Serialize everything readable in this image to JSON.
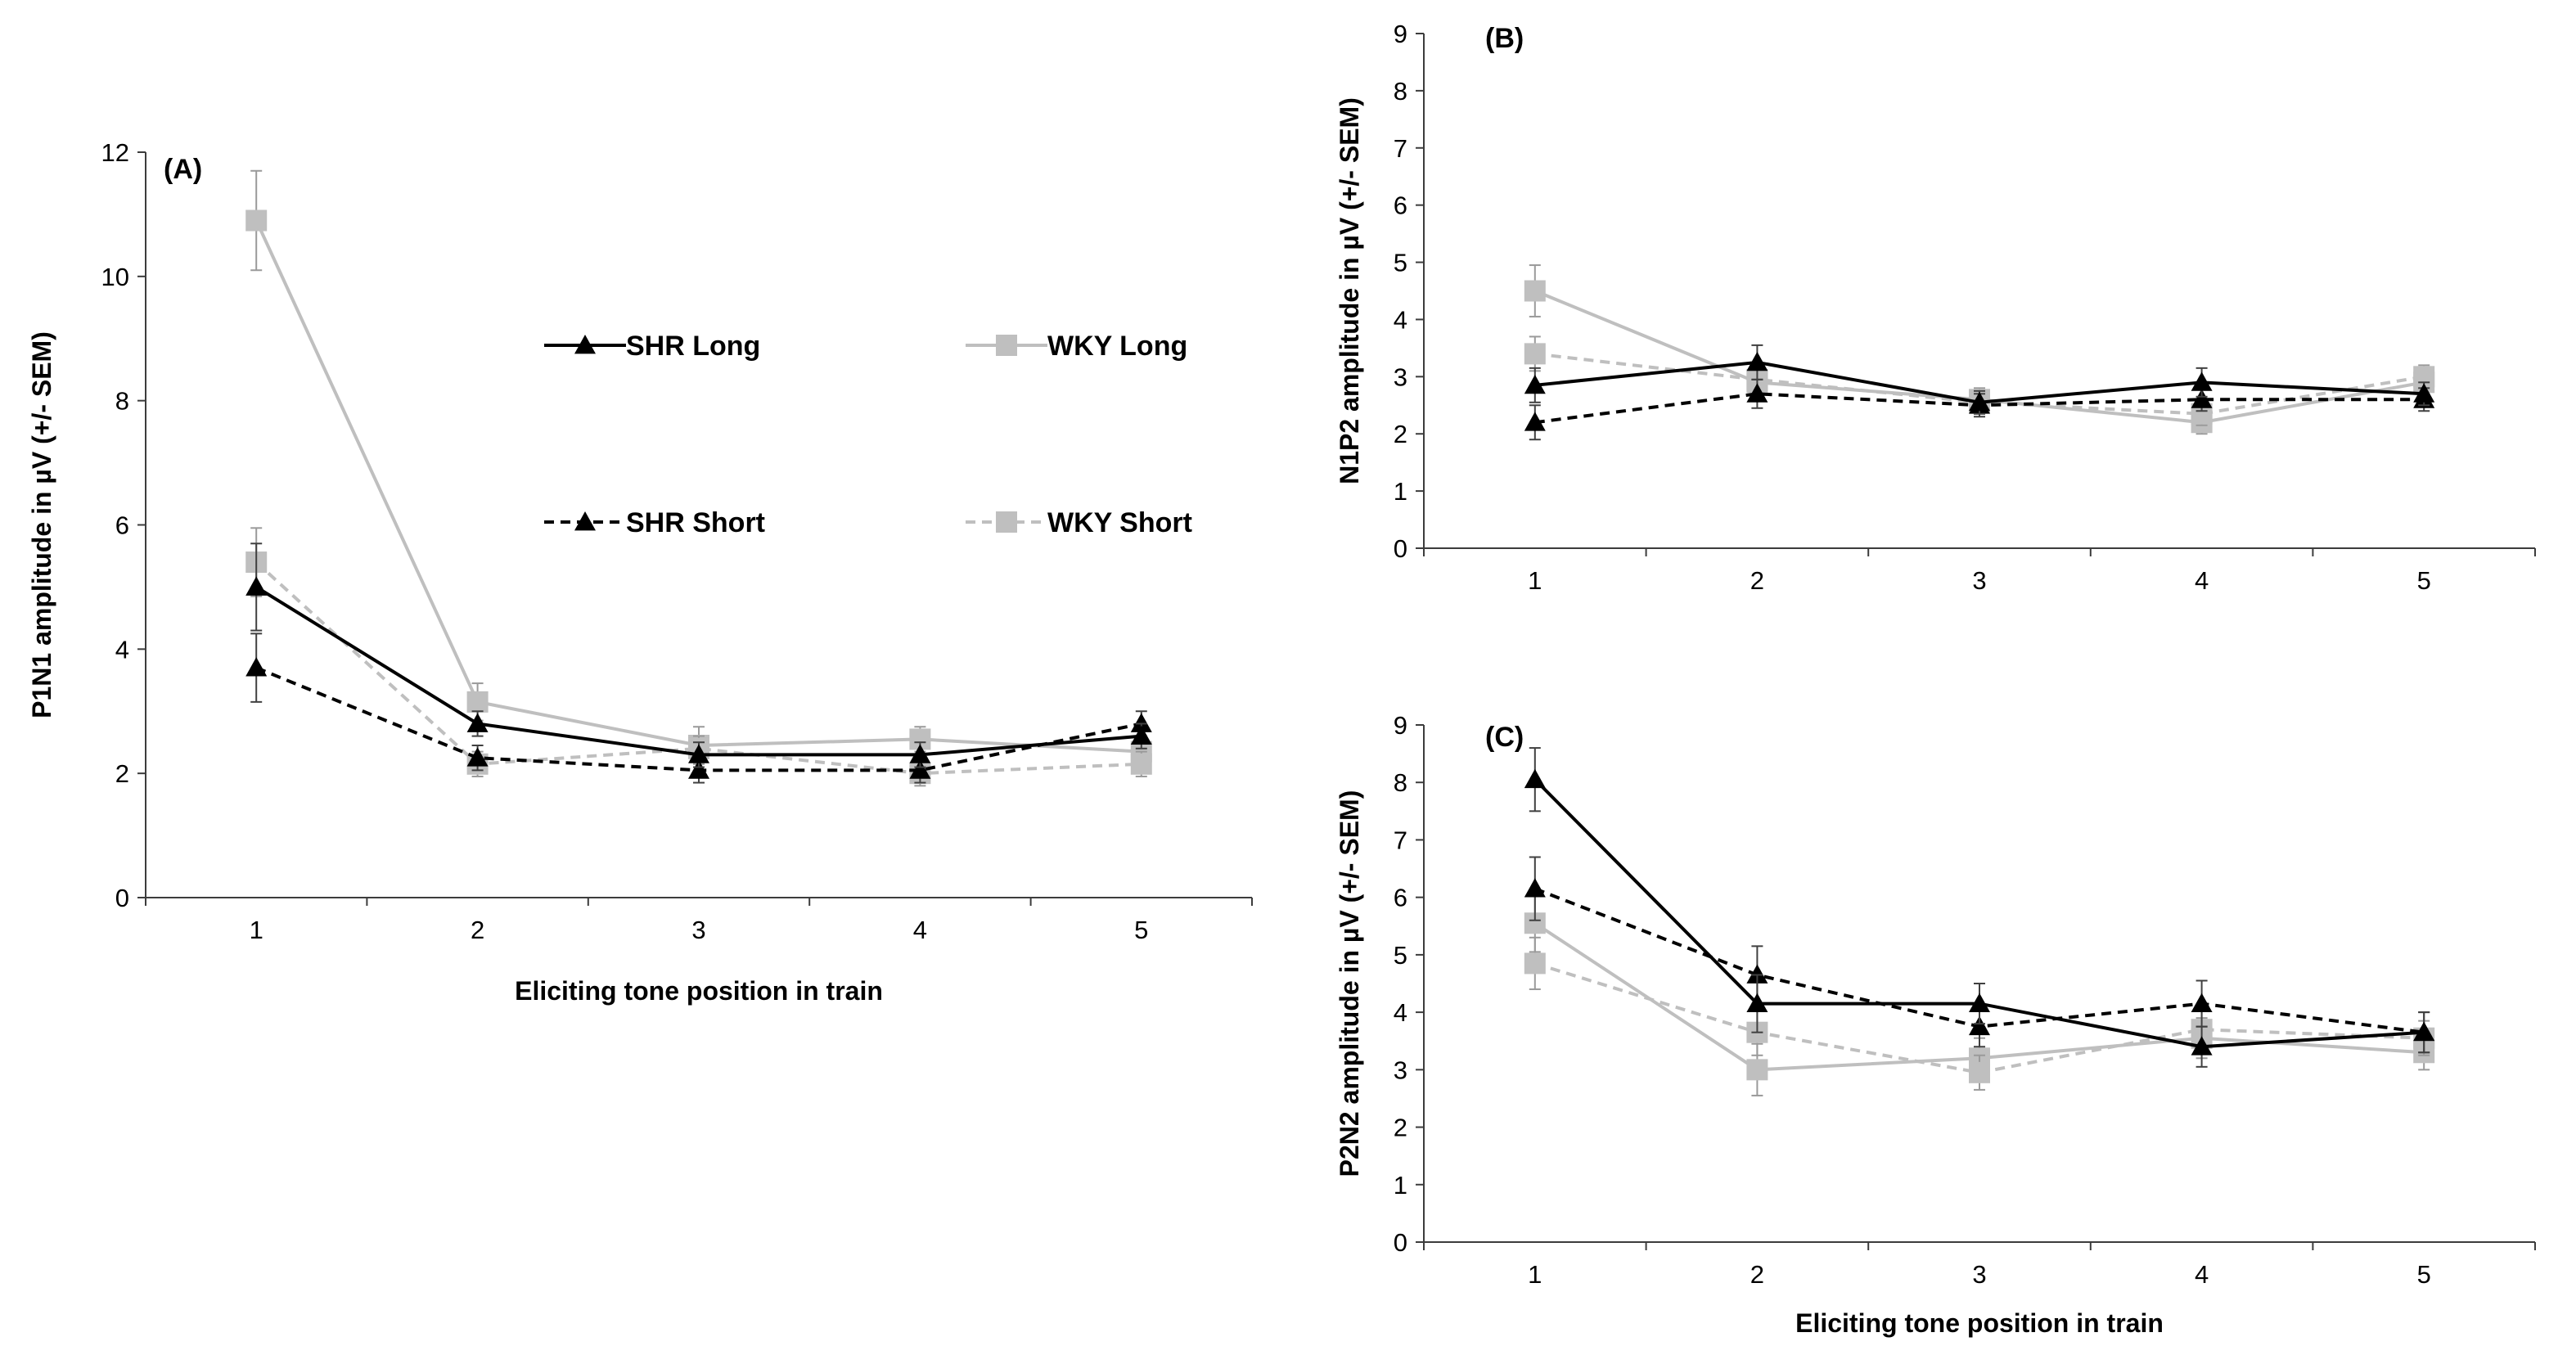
{
  "chart_data": [
    {
      "id": "A",
      "type": "line",
      "panel_label": "(A)",
      "xlabel": "Eliciting tone position in train",
      "ylabel": "P1N1 amplitude in µV (+/- SEM)",
      "categories": [
        "1",
        "2",
        "3",
        "4",
        "5"
      ],
      "ylim": [
        0,
        12
      ],
      "yticks": [
        "0",
        "2",
        "4",
        "6",
        "8",
        "10",
        "12"
      ],
      "legend_position": "top-right inside plot",
      "series": [
        {
          "name": "SHR Long",
          "color": "#000000",
          "dash": "solid",
          "marker": "triangle",
          "values": [
            5.0,
            2.8,
            2.3,
            2.3,
            2.6
          ],
          "errors": [
            0.7,
            0.2,
            0.2,
            0.2,
            0.2
          ]
        },
        {
          "name": "WKY Long",
          "color": "#bfbfbf",
          "dash": "solid",
          "marker": "square",
          "values": [
            10.9,
            3.15,
            2.45,
            2.55,
            2.35
          ],
          "errors": [
            0.8,
            0.3,
            0.3,
            0.2,
            0.2
          ]
        },
        {
          "name": "SHR Short",
          "color": "#000000",
          "dash": "dashed",
          "marker": "triangle",
          "values": [
            3.7,
            2.25,
            2.05,
            2.05,
            2.8
          ],
          "errors": [
            0.55,
            0.2,
            0.2,
            0.2,
            0.2
          ]
        },
        {
          "name": "WKY Short",
          "color": "#bfbfbf",
          "dash": "dashed",
          "marker": "square",
          "values": [
            5.4,
            2.15,
            2.4,
            2.0,
            2.15
          ],
          "errors": [
            0.55,
            0.2,
            0.2,
            0.2,
            0.2
          ]
        }
      ]
    },
    {
      "id": "B",
      "type": "line",
      "panel_label": "(B)",
      "xlabel": "",
      "ylabel": "N1P2 amplitude in µV (+/- SEM)",
      "categories": [
        "1",
        "2",
        "3",
        "4",
        "5"
      ],
      "ylim": [
        0,
        9
      ],
      "yticks": [
        "0",
        "1",
        "2",
        "3",
        "4",
        "5",
        "6",
        "7",
        "8",
        "9"
      ],
      "series": [
        {
          "name": "SHR Long",
          "color": "#000000",
          "dash": "solid",
          "marker": "triangle",
          "values": [
            2.85,
            3.25,
            2.55,
            2.9,
            2.7
          ],
          "errors": [
            0.3,
            0.3,
            0.2,
            0.25,
            0.2
          ]
        },
        {
          "name": "WKY Long",
          "color": "#bfbfbf",
          "dash": "solid",
          "marker": "square",
          "values": [
            4.5,
            2.9,
            2.6,
            2.2,
            2.9
          ],
          "errors": [
            0.45,
            0.3,
            0.2,
            0.2,
            0.2
          ]
        },
        {
          "name": "SHR Short",
          "color": "#000000",
          "dash": "dashed",
          "marker": "triangle",
          "values": [
            2.2,
            2.7,
            2.5,
            2.6,
            2.6
          ],
          "errors": [
            0.3,
            0.25,
            0.2,
            0.2,
            0.2
          ]
        },
        {
          "name": "WKY Short",
          "color": "#bfbfbf",
          "dash": "dashed",
          "marker": "square",
          "values": [
            3.4,
            2.95,
            2.55,
            2.35,
            3.0
          ],
          "errors": [
            0.3,
            0.25,
            0.2,
            0.2,
            0.2
          ]
        }
      ]
    },
    {
      "id": "C",
      "type": "line",
      "panel_label": "(C)",
      "xlabel": "Eliciting tone position in train",
      "ylabel": "P2N2 amplitude in µV (+/- SEM)",
      "categories": [
        "1",
        "2",
        "3",
        "4",
        "5"
      ],
      "ylim": [
        0,
        9
      ],
      "yticks": [
        "0",
        "1",
        "2",
        "3",
        "4",
        "5",
        "6",
        "7",
        "8",
        "9"
      ],
      "series": [
        {
          "name": "SHR Long",
          "color": "#000000",
          "dash": "solid",
          "marker": "triangle",
          "values": [
            8.05,
            4.15,
            4.15,
            3.4,
            3.65
          ],
          "errors": [
            0.55,
            0.5,
            0.35,
            0.35,
            0.35
          ]
        },
        {
          "name": "WKY Long",
          "color": "#bfbfbf",
          "dash": "solid",
          "marker": "square",
          "values": [
            5.55,
            3.0,
            3.2,
            3.55,
            3.3
          ],
          "errors": [
            0.5,
            0.45,
            0.35,
            0.35,
            0.3
          ]
        },
        {
          "name": "SHR Short",
          "color": "#000000",
          "dash": "dashed",
          "marker": "triangle",
          "values": [
            6.15,
            4.65,
            3.75,
            4.15,
            3.65
          ],
          "errors": [
            0.55,
            0.5,
            0.35,
            0.4,
            0.35
          ]
        },
        {
          "name": "WKY Short",
          "color": "#bfbfbf",
          "dash": "dashed",
          "marker": "square",
          "values": [
            4.85,
            3.65,
            2.95,
            3.7,
            3.55
          ],
          "errors": [
            0.45,
            0.4,
            0.3,
            0.35,
            0.3
          ]
        }
      ]
    }
  ]
}
